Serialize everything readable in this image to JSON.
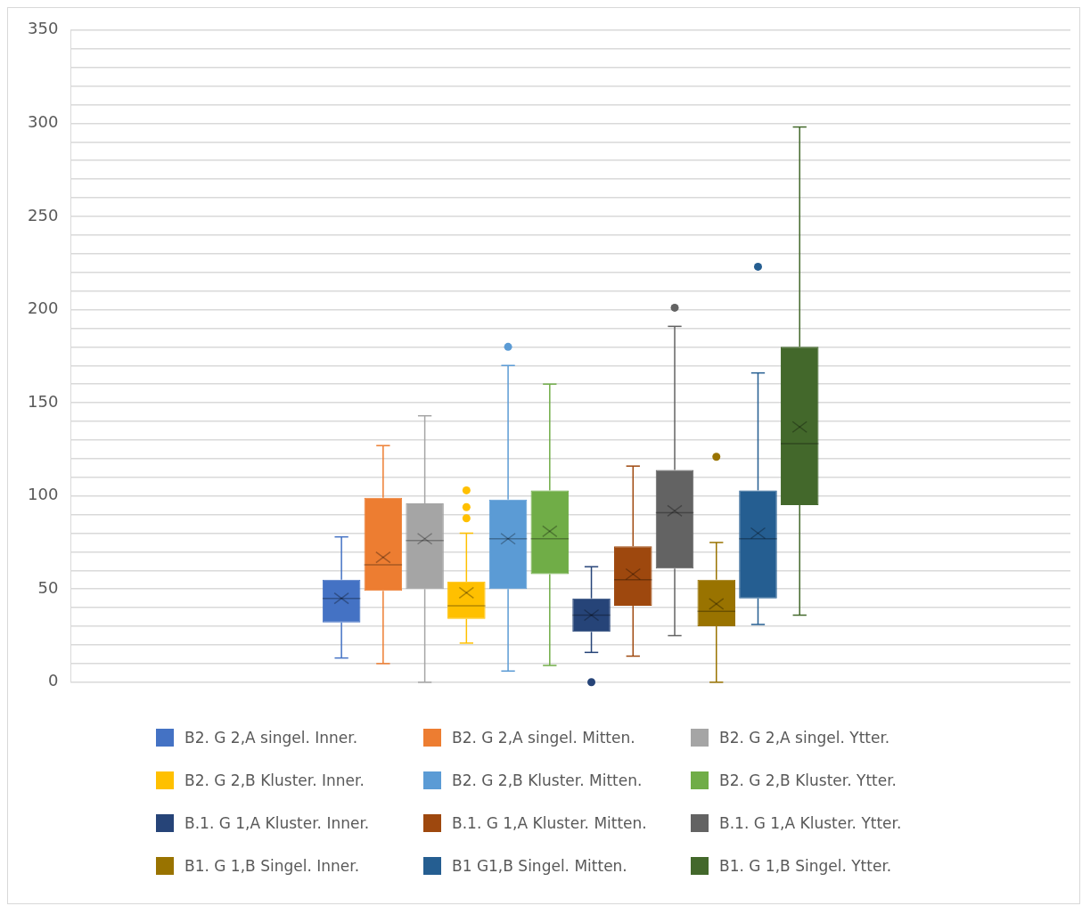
{
  "chart_data": {
    "type": "box",
    "categories": [
      null
    ],
    "ylim": [
      0,
      350
    ],
    "yticks": [
      0,
      {
        "value": 10,
        "label": null
      },
      {
        "value": 20,
        "label": null
      },
      {
        "value": 30,
        "label": null
      },
      {
        "value": 40,
        "label": null
      },
      50,
      {
        "value": 60,
        "label": null
      },
      {
        "value": 70,
        "label": null
      },
      {
        "value": 80,
        "label": null
      },
      {
        "value": 90,
        "label": null
      },
      100,
      {
        "value": 110,
        "label": null
      },
      {
        "value": 120,
        "label": null
      },
      {
        "value": 130,
        "label": null
      },
      {
        "value": 140,
        "label": null
      },
      150,
      {
        "value": 160,
        "label": null
      },
      {
        "value": 170,
        "label": null
      },
      {
        "value": 180,
        "label": null
      },
      {
        "value": 190,
        "label": null
      },
      200,
      {
        "value": 210,
        "label": null
      },
      {
        "value": 220,
        "label": null
      },
      {
        "value": 230,
        "label": null
      },
      {
        "value": 240,
        "label": null
      },
      250,
      {
        "value": 260,
        "label": null
      },
      {
        "value": 270,
        "label": null
      },
      {
        "value": 280,
        "label": null
      },
      {
        "value": 290,
        "label": null
      },
      300,
      {
        "value": 310,
        "label": null
      },
      {
        "value": 320,
        "label": null
      },
      {
        "value": 330,
        "label": null
      },
      {
        "value": 340,
        "label": null
      },
      350
    ],
    "grid": "y",
    "legend": "bottom",
    "series": [
      {
        "name": "B2. G 2,A singel. Inner.",
        "color": "#4472c4",
        "boxes": [
          {
            "low": 13,
            "q1": 32,
            "median": 45,
            "q3": 55,
            "high": 78,
            "mean": 45
          }
        ]
      },
      {
        "name": "B2. G 2,A singel. Mitten.",
        "color": "#ed7d31",
        "boxes": [
          {
            "low": 10,
            "q1": 49,
            "median": 63,
            "q3": 99,
            "high": 127,
            "mean": 67
          }
        ]
      },
      {
        "name": "B2. G 2,A singel. Ytter.",
        "color": "#a5a5a5",
        "boxes": [
          {
            "low": 0,
            "q1": 50,
            "median": 76,
            "q3": 96,
            "high": 143,
            "mean": 77
          }
        ]
      },
      {
        "name": "B2. G 2,B Kluster. Inner.",
        "color": "#ffc000",
        "boxes": [
          {
            "low": 21,
            "q1": 34,
            "median": 41,
            "q3": 54,
            "high": 80,
            "mean": 48,
            "outliers": [
              88,
              94,
              103
            ]
          }
        ]
      },
      {
        "name": "B2. G 2,B Kluster. Mitten.",
        "color": "#5b9bd5",
        "boxes": [
          {
            "low": 6,
            "q1": 50,
            "median": 77,
            "q3": 98,
            "high": 170,
            "mean": 77,
            "outliers": [
              180
            ]
          }
        ]
      },
      {
        "name": "B2. G 2,B Kluster. Ytter.",
        "color": "#70ad47",
        "boxes": [
          {
            "low": 9,
            "q1": 58,
            "median": 77,
            "q3": 103,
            "high": 160,
            "mean": 81
          }
        ]
      },
      {
        "name": "B.1. G 1,A Kluster. Inner.",
        "color": "#264478",
        "boxes": [
          {
            "low": 16,
            "q1": 27,
            "median": 36,
            "q3": 45,
            "high": 62,
            "mean": 36,
            "outliers": [
              0
            ]
          }
        ]
      },
      {
        "name": "B.1. G 1,A Kluster. Mitten.",
        "color": "#9e480e",
        "boxes": [
          {
            "low": 14,
            "q1": 41,
            "median": 55,
            "q3": 73,
            "high": 116,
            "mean": 58
          }
        ]
      },
      {
        "name": "B.1. G 1,A Kluster. Ytter.",
        "color": "#636363",
        "boxes": [
          {
            "low": 25,
            "q1": 61,
            "median": 91,
            "q3": 114,
            "high": 191,
            "mean": 92,
            "outliers": [
              201
            ]
          }
        ]
      },
      {
        "name": "B1. G 1,B Singel. Inner.",
        "color": "#997300",
        "boxes": [
          {
            "low": 0,
            "q1": 30,
            "median": 38,
            "q3": 55,
            "high": 75,
            "mean": 42,
            "outliers": [
              121
            ]
          }
        ]
      },
      {
        "name": "B1 G1,B Singel. Mitten.",
        "color": "#255e91",
        "boxes": [
          {
            "low": 31,
            "q1": 45,
            "median": 77,
            "q3": 103,
            "high": 166,
            "mean": 80,
            "outliers": [
              223
            ]
          }
        ]
      },
      {
        "name": "B1. G 1,B Singel. Ytter.",
        "color": "#43682b",
        "boxes": [
          {
            "low": 36,
            "q1": 95,
            "median": 128,
            "q3": 180,
            "high": 298,
            "mean": 137
          }
        ]
      }
    ]
  }
}
